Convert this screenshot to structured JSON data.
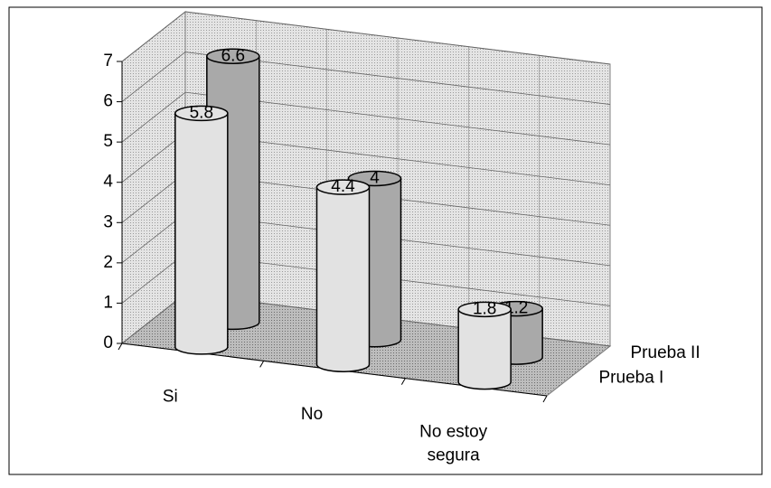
{
  "chart_data": {
    "type": "bar3d",
    "categories": [
      "Si",
      "No",
      "No estoy segura"
    ],
    "series": [
      {
        "name": "Prueba I",
        "color": "#e2e2e2",
        "values": [
          5.8,
          4.4,
          1.8
        ]
      },
      {
        "name": "Prueba II",
        "color": "#a9a9a9",
        "values": [
          6.6,
          4.0,
          1.2
        ]
      }
    ],
    "ylim": [
      0,
      7
    ],
    "yticks": [
      0,
      1,
      2,
      3,
      4,
      5,
      6,
      7
    ],
    "grid": true
  }
}
